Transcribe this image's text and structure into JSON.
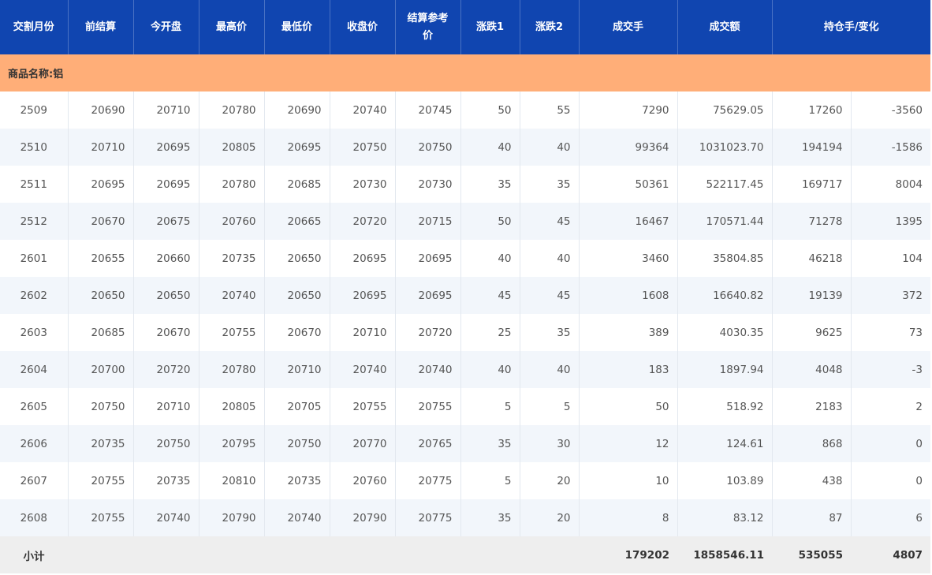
{
  "headers": [
    "交割月份",
    "前结算",
    "今开盘",
    "最高价",
    "最低价",
    "收盘价",
    "结算参考价",
    "涨跌1",
    "涨跌2",
    "成交手",
    "成交额",
    "持仓手/变化"
  ],
  "category": "商品名称:铝",
  "rows": [
    [
      "2509",
      "20690",
      "20710",
      "20780",
      "20690",
      "20740",
      "20745",
      "50",
      "55",
      "7290",
      "75629.05",
      "17260",
      "-3560"
    ],
    [
      "2510",
      "20710",
      "20695",
      "20805",
      "20695",
      "20750",
      "20750",
      "40",
      "40",
      "99364",
      "1031023.70",
      "194194",
      "-1586"
    ],
    [
      "2511",
      "20695",
      "20695",
      "20780",
      "20685",
      "20730",
      "20730",
      "35",
      "35",
      "50361",
      "522117.45",
      "169717",
      "8004"
    ],
    [
      "2512",
      "20670",
      "20675",
      "20760",
      "20665",
      "20720",
      "20715",
      "50",
      "45",
      "16467",
      "170571.44",
      "71278",
      "1395"
    ],
    [
      "2601",
      "20655",
      "20660",
      "20735",
      "20650",
      "20695",
      "20695",
      "40",
      "40",
      "3460",
      "35804.85",
      "46218",
      "104"
    ],
    [
      "2602",
      "20650",
      "20650",
      "20740",
      "20650",
      "20695",
      "20695",
      "45",
      "45",
      "1608",
      "16640.82",
      "19139",
      "372"
    ],
    [
      "2603",
      "20685",
      "20670",
      "20755",
      "20670",
      "20710",
      "20720",
      "25",
      "35",
      "389",
      "4030.35",
      "9625",
      "73"
    ],
    [
      "2604",
      "20700",
      "20720",
      "20780",
      "20710",
      "20740",
      "20740",
      "40",
      "40",
      "183",
      "1897.94",
      "4048",
      "-3"
    ],
    [
      "2605",
      "20750",
      "20710",
      "20805",
      "20705",
      "20755",
      "20755",
      "5",
      "5",
      "50",
      "518.92",
      "2183",
      "2"
    ],
    [
      "2606",
      "20735",
      "20750",
      "20795",
      "20750",
      "20770",
      "20765",
      "35",
      "30",
      "12",
      "124.61",
      "868",
      "0"
    ],
    [
      "2607",
      "20755",
      "20735",
      "20810",
      "20735",
      "20760",
      "20775",
      "5",
      "20",
      "10",
      "103.89",
      "438",
      "0"
    ],
    [
      "2608",
      "20755",
      "20740",
      "20790",
      "20740",
      "20790",
      "20775",
      "35",
      "20",
      "8",
      "83.12",
      "87",
      "6"
    ]
  ],
  "subtotal": {
    "label": "小计",
    "volume": "179202",
    "turnover": "1858546.11",
    "open_interest": "535055",
    "change": "4807"
  },
  "colors": {
    "header": "#1045b0",
    "category": "#ffae78",
    "stripe": "#f2f6fb",
    "subtotal": "#eeeeee"
  }
}
